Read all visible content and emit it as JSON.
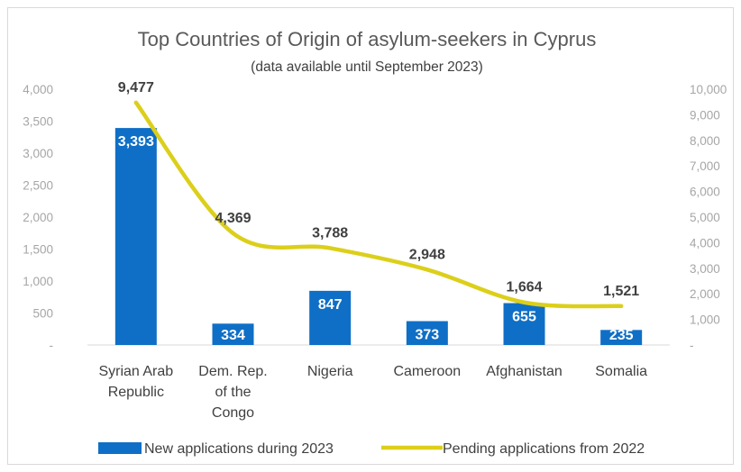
{
  "chart_data": {
    "type": "bar",
    "title": "Top Countries of Origin of asylum-seekers in Cyprus",
    "subtitle": "(data available until September 2023)",
    "categories": [
      [
        "Syrian Arab",
        "Republic"
      ],
      [
        "Dem. Rep.",
        "of the",
        "Congo"
      ],
      [
        "Nigeria"
      ],
      [
        "Cameroon"
      ],
      [
        "Afghanistan"
      ],
      [
        "Somalia"
      ]
    ],
    "series": [
      {
        "name": "New applications during 2023",
        "type": "bar",
        "axis": "left",
        "values": [
          3393,
          334,
          847,
          373,
          655,
          235
        ],
        "value_labels": [
          "3,393",
          "334",
          "847",
          "373",
          "655",
          "235"
        ],
        "color": "#0f6fc6"
      },
      {
        "name": "Pending applications from 2022",
        "type": "line",
        "smooth": true,
        "axis": "right",
        "values": [
          9477,
          4369,
          3788,
          2948,
          1664,
          1521
        ],
        "value_labels": [
          "9,477",
          "4,369",
          "3,788",
          "2,948",
          "1,664",
          "1,521"
        ],
        "color": "#dccf1a"
      }
    ],
    "left_axis": {
      "ylim": [
        0,
        4000
      ],
      "ticks": [
        0,
        500,
        1000,
        1500,
        2000,
        2500,
        3000,
        3500,
        4000
      ],
      "tick_labels": [
        "-",
        "500",
        "1,000",
        "1,500",
        "2,000",
        "2,500",
        "3,000",
        "3,500",
        "4,000"
      ]
    },
    "right_axis": {
      "ylim": [
        0,
        10000
      ],
      "ticks": [
        0,
        1000,
        2000,
        3000,
        4000,
        5000,
        6000,
        7000,
        8000,
        9000,
        10000
      ],
      "tick_labels": [
        "-",
        "1,000",
        "2,000",
        "3,000",
        "4,000",
        "5,000",
        "6,000",
        "7,000",
        "8,000",
        "9,000",
        "10,000"
      ]
    },
    "grid": false,
    "legend_position": "bottom"
  }
}
